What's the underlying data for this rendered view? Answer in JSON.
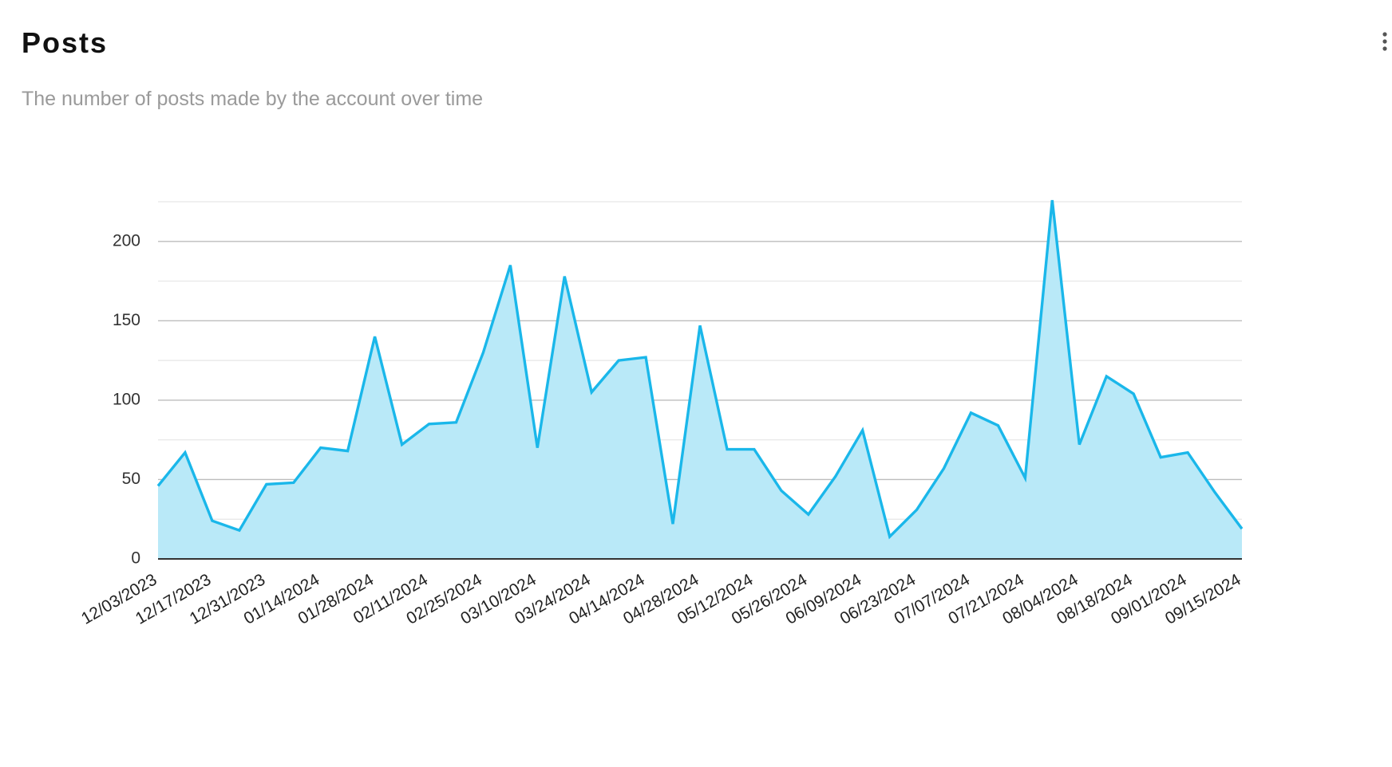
{
  "chart_data": {
    "type": "area",
    "title": "Posts",
    "subtitle": "The number of posts made by the account over time",
    "categories": [
      "12/03/2023",
      null,
      "12/17/2023",
      null,
      "12/31/2023",
      null,
      "01/14/2024",
      null,
      "01/28/2024",
      null,
      "02/11/2024",
      null,
      "02/25/2024",
      null,
      "03/10/2024",
      null,
      "03/24/2024",
      null,
      "04/14/2024",
      null,
      "04/28/2024",
      null,
      "05/12/2024",
      null,
      "05/26/2024",
      null,
      "06/09/2024",
      null,
      "06/23/2024",
      null,
      "07/07/2024",
      null,
      "07/21/2024",
      null,
      "08/04/2024",
      null,
      "08/18/2024",
      null,
      "09/01/2024",
      null,
      "09/15/2024"
    ],
    "values": [
      46,
      67,
      24,
      18,
      47,
      48,
      70,
      68,
      140,
      72,
      85,
      86,
      130,
      185,
      70,
      178,
      105,
      125,
      127,
      22,
      147,
      69,
      69,
      43,
      28,
      52,
      81,
      14,
      31,
      57,
      92,
      84,
      51,
      226,
      72,
      115,
      104,
      64,
      67,
      42,
      19
    ],
    "color": "#1ab7ea",
    "fill_color": "#b9e9f8",
    "ylim": [
      0,
      225
    ],
    "yticks": [
      0,
      50,
      100,
      150,
      200
    ],
    "grid": true,
    "minor_grid": true
  }
}
